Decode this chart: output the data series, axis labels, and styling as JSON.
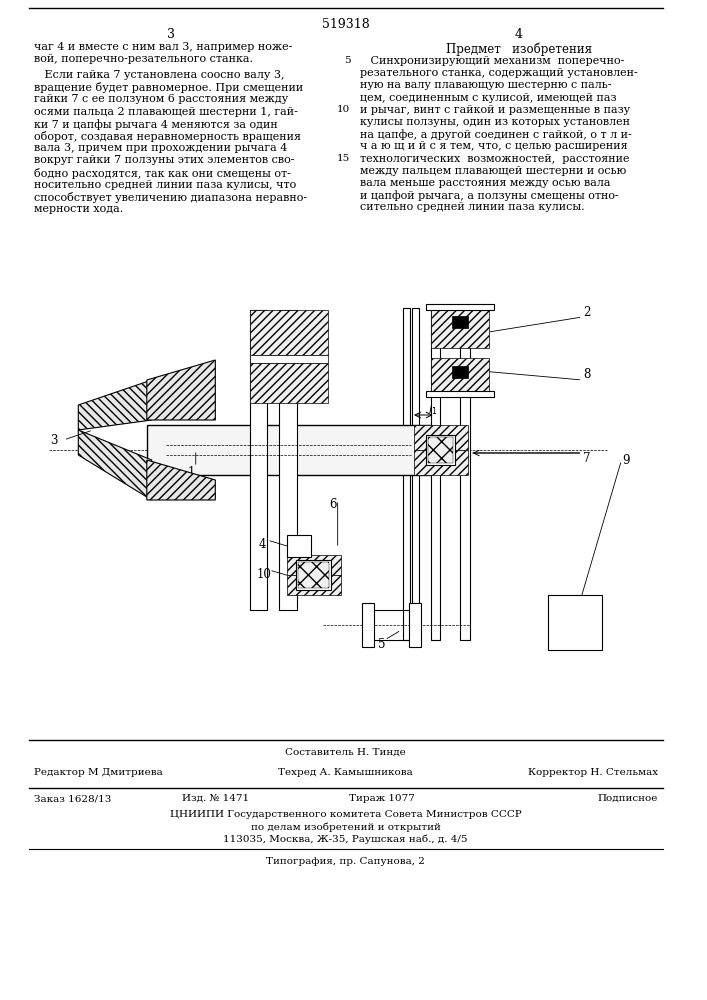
{
  "patent_number": "519318",
  "page_left": "3",
  "page_right": "4",
  "top_line_left": "чаг 4 и вместе с ним вал 3, например ноже-",
  "top_line_left2": "вой, поперечно-резательного станка.",
  "left_column_text": [
    "   Если гайка 7 установлена соосно валу 3,",
    "вращение будет равномерное. При смещении",
    "гайки 7 с ее ползуном 6 расстояния между",
    "осями пальца 2 плавающей шестерни 1, гай-",
    "ки 7 и цапфы рычага 4 меняются за один",
    "оборот, создавая неравномерность вращения",
    "вала 3, причем при прохождении рычага 4",
    "вокруг гайки 7 ползуны этих элементов сво-",
    "бодно расходятся, так как они смещены от-",
    "носительно средней линии паза кулисы, что",
    "способствует увеличению диапазона неравно-",
    "мерности хода."
  ],
  "right_header": "Предмет   изобретения",
  "right_column_text": [
    "   Синхронизирующий механизм  поперечно-",
    "резательного станка, содержащий установлен-",
    "ную на валу плавающую шестерню с паль-",
    "цем, соединенным с кулисой, имеющей паз",
    "и рычаг, винт с гайкой и размещенные в пазу",
    "кулисы ползуны, один из которых установлен",
    "на цапфе, а другой соединен с гайкой, о т л и-",
    "ч а ю щ и й с я тем, что, с целью расширения",
    "технологических  возможностей,  расстояние",
    "между пальцем плавающей шестерни и осью",
    "вала меньше расстояния между осью вала",
    "и цапфой рычага, а ползуны смещены отно-",
    "сительно средней линии паза кулисы."
  ],
  "line_nums": {
    "0": "5",
    "4": "10",
    "8": "15"
  },
  "bottom_label": "Составитель Н. Тинде",
  "editor": "Редактор М Дмитриева",
  "techred": "Техред А. Камышникова",
  "corrector": "Корректор Н. Стельмах",
  "order": "Заказ 1628/13",
  "izd": "Изд. № 1471",
  "tirazh": "Тираж 1077",
  "podpisnoe": "Подписное",
  "inst1": "ЦНИИПИ Государственного комитета Совета Министров СССР",
  "inst2": "по делам изобретений и открытий",
  "inst3": "113035, Москва, Ж-35, Раушская наб., д. 4/5",
  "printing": "Типография, пр. Сапунова, 2",
  "bg_color": "#ffffff"
}
